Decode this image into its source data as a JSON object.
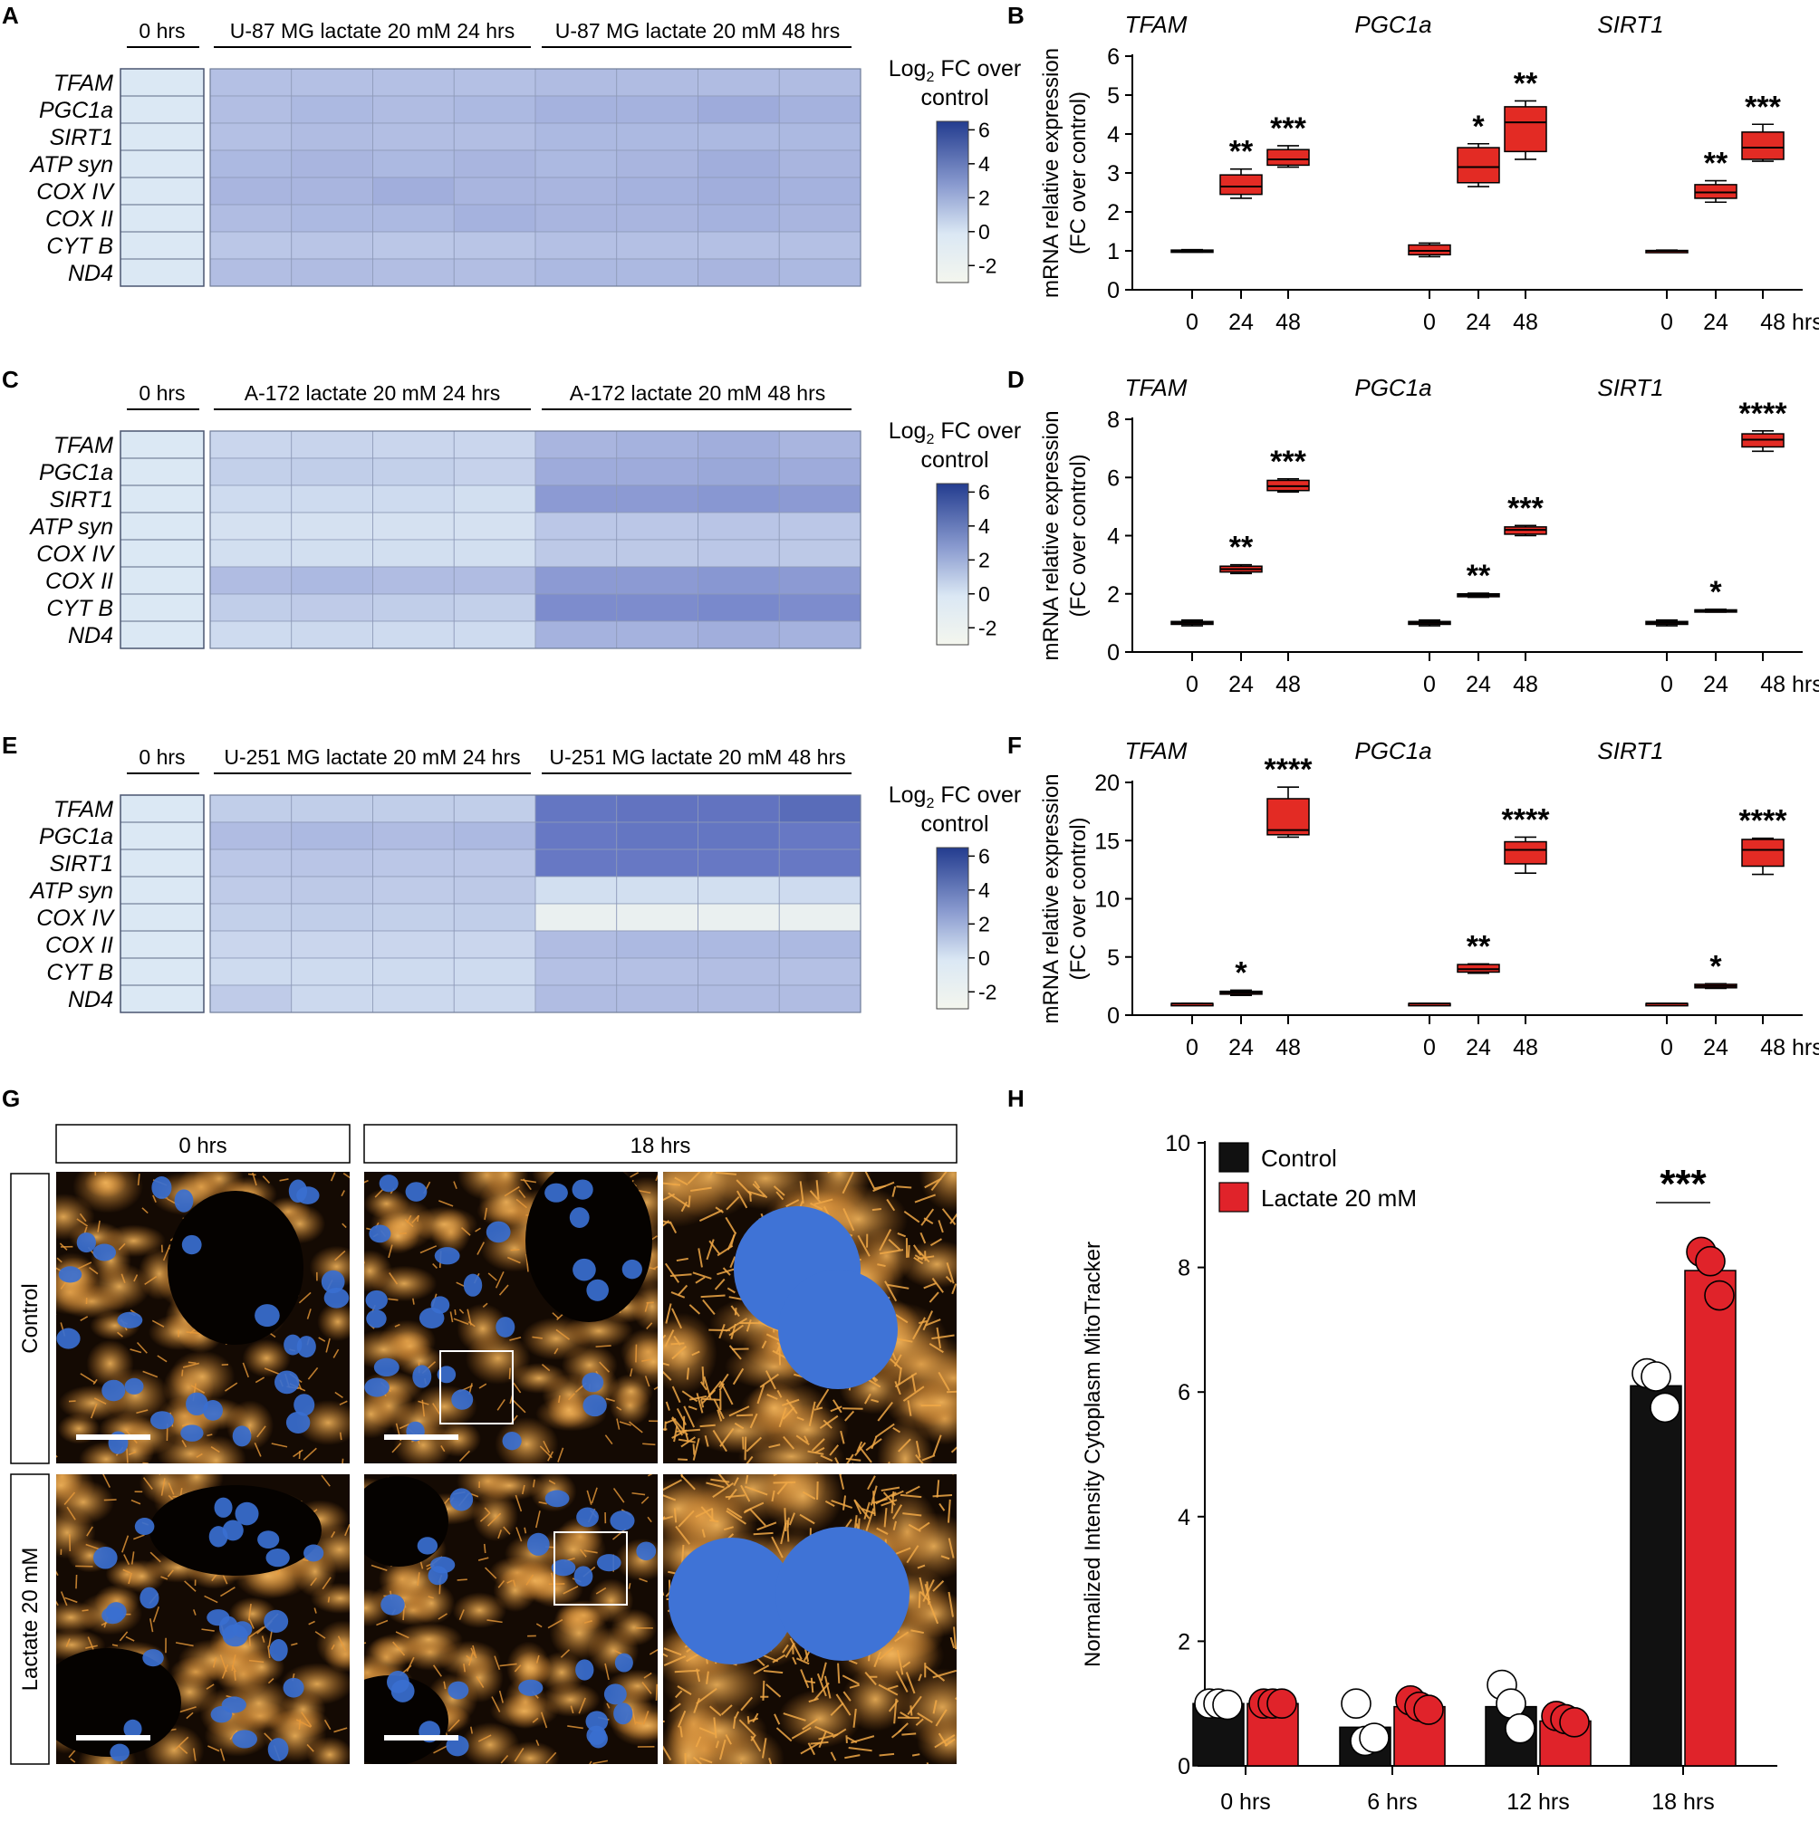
{
  "colors": {
    "box_red": "#e32b24",
    "bar_black": "#111111",
    "bar_red": "#e0232a",
    "heat_low": "#f4f6ee",
    "heat_mid": "#dbe8f4",
    "heat_high": "#233c8f",
    "cell_orange": "#e89a3a",
    "nucleus_blue": "#3a6fd0"
  },
  "heatmap_legend": {
    "title_prefix": "Log",
    "title_subscript": "2",
    "title_suffix": " FC over",
    "title_line2": "control",
    "ticks": [
      "6",
      "4",
      "2",
      "0",
      "-2"
    ],
    "range": [
      -3,
      6.5
    ]
  },
  "heatmaps": [
    {
      "panel": "A",
      "group_labels": [
        "0 hrs",
        "U-87 MG lactate 20 mM 24 hrs",
        "U-87 MG lactate 20 mM 48 hrs"
      ],
      "genes": [
        "TFAM",
        "PGC1a",
        "SIRT1",
        "ATP syn",
        "COX IV",
        "COX II",
        "CYT B",
        "ND4"
      ],
      "control": [
        0,
        0,
        0,
        0,
        0,
        0,
        0,
        0
      ],
      "values": [
        [
          1.8,
          1.8,
          1.8,
          1.8,
          2.0,
          2.0,
          2.0,
          2.0
        ],
        [
          1.9,
          2.1,
          2.0,
          2.1,
          2.3,
          2.3,
          2.5,
          2.3
        ],
        [
          1.8,
          2.0,
          1.9,
          1.9,
          2.1,
          2.1,
          2.1,
          2.1
        ],
        [
          2.1,
          2.2,
          2.1,
          2.2,
          2.1,
          2.2,
          2.4,
          2.2
        ],
        [
          2.2,
          2.2,
          2.4,
          2.2,
          2.2,
          2.3,
          2.4,
          2.3
        ],
        [
          2.0,
          2.1,
          2.1,
          2.3,
          2.2,
          2.2,
          2.3,
          2.2
        ],
        [
          1.5,
          1.6,
          1.5,
          1.6,
          1.8,
          1.8,
          1.8,
          1.8
        ],
        [
          1.9,
          2.0,
          1.9,
          1.9,
          2.1,
          2.1,
          2.2,
          2.1
        ]
      ]
    },
    {
      "panel": "C",
      "group_labels": [
        "0 hrs",
        "A-172  lactate 20 mM 24 hrs",
        "A-172  lactate 20 mM 48 hrs"
      ],
      "genes": [
        "TFAM",
        "PGC1a",
        "SIRT1",
        "ATP syn",
        "COX IV",
        "COX II",
        "CYT B",
        "ND4"
      ],
      "control": [
        0,
        0,
        0,
        0,
        0,
        0,
        0,
        0
      ],
      "values": [
        [
          0.8,
          0.9,
          0.8,
          0.8,
          2.2,
          2.3,
          2.4,
          2.2
        ],
        [
          1.1,
          1.2,
          1.1,
          1.0,
          2.5,
          2.5,
          2.6,
          2.5
        ],
        [
          0.6,
          0.6,
          0.6,
          0.4,
          3.0,
          3.0,
          3.1,
          3.0
        ],
        [
          0.3,
          0.3,
          0.3,
          0.3,
          1.5,
          1.5,
          1.6,
          1.5
        ],
        [
          0.4,
          0.4,
          0.4,
          0.4,
          1.4,
          1.4,
          1.5,
          1.4
        ],
        [
          2.0,
          2.1,
          2.0,
          2.0,
          3.0,
          3.0,
          3.1,
          3.0
        ],
        [
          1.2,
          1.3,
          1.2,
          1.1,
          3.4,
          3.4,
          3.5,
          3.4
        ],
        [
          0.6,
          0.7,
          0.6,
          0.6,
          2.3,
          2.3,
          2.4,
          2.3
        ]
      ]
    },
    {
      "panel": "E",
      "group_labels": [
        "0 hrs",
        "U-251 MG lactate 20 mM 24 hrs",
        "U-251 MG lactate 20 mM 48 hrs"
      ],
      "genes": [
        "TFAM",
        "PGC1a",
        "SIRT1",
        "ATP syn",
        "COX IV",
        "COX II",
        "CYT B",
        "ND4"
      ],
      "control": [
        0,
        0,
        0,
        0,
        0,
        0,
        0,
        0
      ],
      "values": [
        [
          1.2,
          1.2,
          1.2,
          1.2,
          4.1,
          4.2,
          4.2,
          4.5
        ],
        [
          2.0,
          2.1,
          2.0,
          2.1,
          4.0,
          4.1,
          4.1,
          4.0
        ],
        [
          1.5,
          1.6,
          1.5,
          1.5,
          4.0,
          4.0,
          4.0,
          4.0
        ],
        [
          1.3,
          1.4,
          1.3,
          1.4,
          0.4,
          0.4,
          0.4,
          0.6
        ],
        [
          1.1,
          1.2,
          1.1,
          1.2,
          -1.8,
          -1.8,
          -1.8,
          -1.8
        ],
        [
          0.8,
          0.8,
          0.8,
          0.8,
          2.0,
          2.1,
          2.1,
          2.1
        ],
        [
          0.6,
          0.6,
          0.6,
          0.6,
          1.8,
          1.8,
          1.9,
          1.8
        ],
        [
          1.3,
          0.7,
          0.7,
          0.7,
          2.0,
          2.0,
          2.0,
          2.0
        ]
      ]
    }
  ],
  "boxplots": [
    {
      "panel": "B",
      "type": "box",
      "ylabel_line1": "mRNA relative expression",
      "ylabel_line2": "(FC over control)",
      "ylim": [
        0,
        6
      ],
      "yticks": [
        "0",
        "1",
        "2",
        "3",
        "4",
        "5",
        "6"
      ],
      "xticks": [
        "0",
        "24",
        "48"
      ],
      "last_tick_suffix": " hrs",
      "groups": [
        {
          "gene": "TFAM",
          "boxes": [
            {
              "min": 0.97,
              "q1": 0.98,
              "med": 1.0,
              "q3": 1.02,
              "max": 1.03,
              "sig": ""
            },
            {
              "min": 2.35,
              "q1": 2.45,
              "med": 2.65,
              "q3": 2.95,
              "max": 3.1,
              "sig": "**"
            },
            {
              "min": 3.15,
              "q1": 3.2,
              "med": 3.35,
              "q3": 3.6,
              "max": 3.7,
              "sig": "***"
            }
          ]
        },
        {
          "gene": "PGC1a",
          "boxes": [
            {
              "min": 0.85,
              "q1": 0.9,
              "med": 1.0,
              "q3": 1.15,
              "max": 1.2,
              "sig": ""
            },
            {
              "min": 2.65,
              "q1": 2.75,
              "med": 3.15,
              "q3": 3.65,
              "max": 3.75,
              "sig": "*"
            },
            {
              "min": 3.35,
              "q1": 3.55,
              "med": 4.3,
              "q3": 4.7,
              "max": 4.85,
              "sig": "**"
            }
          ]
        },
        {
          "gene": "SIRT1",
          "boxes": [
            {
              "min": 0.98,
              "q1": 0.99,
              "med": 1.0,
              "q3": 1.01,
              "max": 1.02,
              "sig": ""
            },
            {
              "min": 2.25,
              "q1": 2.35,
              "med": 2.5,
              "q3": 2.7,
              "max": 2.8,
              "sig": "**"
            },
            {
              "min": 3.3,
              "q1": 3.35,
              "med": 3.65,
              "q3": 4.05,
              "max": 4.25,
              "sig": "***"
            }
          ]
        }
      ]
    },
    {
      "panel": "D",
      "type": "box",
      "ylabel_line1": "mRNA relative expression",
      "ylabel_line2": "(FC over control)",
      "ylim": [
        0,
        8
      ],
      "yticks": [
        "0",
        "2",
        "4",
        "6",
        "8"
      ],
      "xticks": [
        "0",
        "24",
        "48"
      ],
      "last_tick_suffix": " hrs",
      "groups": [
        {
          "gene": "TFAM",
          "boxes": [
            {
              "min": 0.9,
              "q1": 0.95,
              "med": 1.0,
              "q3": 1.05,
              "max": 1.1,
              "sig": ""
            },
            {
              "min": 2.7,
              "q1": 2.75,
              "med": 2.85,
              "q3": 2.95,
              "max": 3.0,
              "sig": "**"
            },
            {
              "min": 5.5,
              "q1": 5.55,
              "med": 5.7,
              "q3": 5.9,
              "max": 5.95,
              "sig": "***"
            }
          ]
        },
        {
          "gene": "PGC1a",
          "boxes": [
            {
              "min": 0.9,
              "q1": 0.95,
              "med": 1.0,
              "q3": 1.05,
              "max": 1.1,
              "sig": ""
            },
            {
              "min": 1.88,
              "q1": 1.9,
              "med": 1.95,
              "q3": 2.0,
              "max": 2.02,
              "sig": "**"
            },
            {
              "min": 4.0,
              "q1": 4.05,
              "med": 4.2,
              "q3": 4.3,
              "max": 4.35,
              "sig": "***"
            }
          ]
        },
        {
          "gene": "SIRT1",
          "boxes": [
            {
              "min": 0.9,
              "q1": 0.95,
              "med": 1.0,
              "q3": 1.05,
              "max": 1.1,
              "sig": ""
            },
            {
              "min": 1.37,
              "q1": 1.39,
              "med": 1.42,
              "q3": 1.45,
              "max": 1.47,
              "sig": "*"
            },
            {
              "min": 6.9,
              "q1": 7.05,
              "med": 7.3,
              "q3": 7.5,
              "max": 7.6,
              "sig": "****"
            }
          ]
        }
      ]
    },
    {
      "panel": "F",
      "type": "box",
      "ylabel_line1": "mRNA relative expression",
      "ylabel_line2": "(FC over control)",
      "ylim": [
        0,
        20
      ],
      "yticks": [
        "0",
        "5",
        "10",
        "15",
        "20"
      ],
      "xticks": [
        "0",
        "24",
        "48"
      ],
      "last_tick_suffix": " hrs",
      "groups": [
        {
          "gene": "TFAM",
          "boxes": [
            {
              "min": 1.0,
              "q1": 1.0,
              "med": 1.0,
              "q3": 1.0,
              "max": 1.0,
              "sig": ""
            },
            {
              "min": 1.7,
              "q1": 1.8,
              "med": 1.95,
              "q3": 2.05,
              "max": 2.15,
              "sig": "*"
            },
            {
              "min": 15.3,
              "q1": 15.5,
              "med": 15.9,
              "q3": 18.6,
              "max": 19.6,
              "sig": "****"
            }
          ]
        },
        {
          "gene": "PGC1a",
          "boxes": [
            {
              "min": 1.0,
              "q1": 1.0,
              "med": 1.0,
              "q3": 1.0,
              "max": 1.0,
              "sig": ""
            },
            {
              "min": 3.6,
              "q1": 3.7,
              "med": 3.95,
              "q3": 4.35,
              "max": 4.4,
              "sig": "**"
            },
            {
              "min": 12.2,
              "q1": 13.0,
              "med": 14.2,
              "q3": 14.9,
              "max": 15.3,
              "sig": "****"
            }
          ]
        },
        {
          "gene": "SIRT1",
          "boxes": [
            {
              "min": 1.0,
              "q1": 1.0,
              "med": 1.0,
              "q3": 1.0,
              "max": 1.0,
              "sig": ""
            },
            {
              "min": 2.3,
              "q1": 2.35,
              "med": 2.5,
              "q3": 2.65,
              "max": 2.7,
              "sig": "*"
            },
            {
              "min": 12.1,
              "q1": 12.8,
              "med": 14.2,
              "q3": 15.1,
              "max": 15.2,
              "sig": "****"
            }
          ]
        }
      ]
    }
  ],
  "micrographs": {
    "panel": "G",
    "col_headers": [
      "0 hrs",
      "18 hrs"
    ],
    "row_labels": [
      "Control",
      "Lactate 20 mM"
    ]
  },
  "chart_data": {
    "panel": "H",
    "type": "bar",
    "title": "",
    "xlabel": "",
    "ylabel": "Normalized Intensity Cytoplasm MitoTracker",
    "ylim": [
      0,
      10
    ],
    "yticks": [
      "0",
      "2",
      "4",
      "6",
      "8",
      "10"
    ],
    "categories": [
      "0 hrs",
      "6 hrs",
      "12 hrs",
      "18 hrs"
    ],
    "series": [
      {
        "name": "Control",
        "values": [
          1.0,
          0.62,
          0.95,
          6.1
        ],
        "points": [
          [
            1.0,
            1.0,
            0.98
          ],
          [
            1.0,
            0.4,
            0.45
          ],
          [
            1.3,
            1.0,
            0.6
          ],
          [
            6.3,
            6.25,
            5.75
          ]
        ]
      },
      {
        "name": "Lactate 20 mM",
        "values": [
          1.0,
          0.95,
          0.72,
          7.95
        ],
        "points": [
          [
            1.0,
            1.0,
            1.0
          ],
          [
            1.05,
            0.95,
            0.9
          ],
          [
            0.8,
            0.75,
            0.7
          ],
          [
            8.25,
            8.1,
            7.55
          ]
        ]
      }
    ],
    "significance": [
      {
        "category": "18 hrs",
        "label": "***"
      }
    ],
    "legend_position": "top-left"
  }
}
